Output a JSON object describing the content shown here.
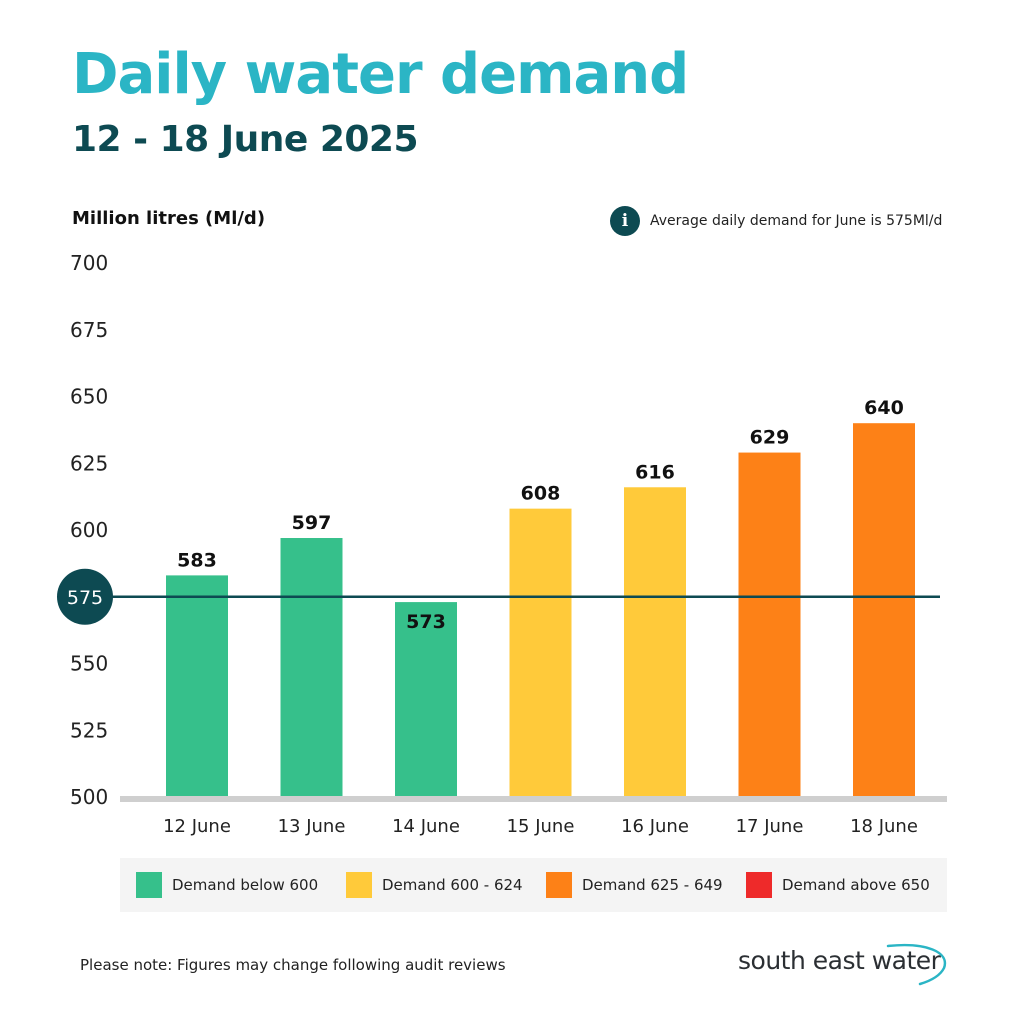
{
  "header": {
    "title": "Daily water demand",
    "subtitle": "12 - 18 June 2025"
  },
  "avg_note": {
    "icon": "info-icon",
    "icon_glyph": "i",
    "text": "Average daily demand for June is 575Ml/d"
  },
  "chart_data": {
    "type": "bar",
    "title": "Daily water demand",
    "ylabel": "Million litres (Ml/d)",
    "xlabel": "",
    "categories": [
      "12 June",
      "13 June",
      "14 June",
      "15 June",
      "16 June",
      "17 June",
      "18 June"
    ],
    "values": [
      583,
      597,
      573,
      608,
      616,
      629,
      640
    ],
    "bar_colors": [
      "#36c08b",
      "#36c08b",
      "#36c08b",
      "#ffca3a",
      "#ffca3a",
      "#fd8117",
      "#fd8117"
    ],
    "ylim": [
      500,
      700
    ],
    "yticks": [
      500,
      525,
      550,
      575,
      600,
      625,
      650,
      675,
      700
    ],
    "reference_line": {
      "value": 575,
      "label": "575",
      "color": "#0d4a52"
    },
    "grid": false
  },
  "legend": [
    {
      "label": "Demand below 600",
      "color": "#36c08b"
    },
    {
      "label": "Demand 600 - 624",
      "color": "#ffca3a"
    },
    {
      "label": "Demand 625 - 649",
      "color": "#fd8117"
    },
    {
      "label": "Demand above 650",
      "color": "#ee2a2a"
    }
  ],
  "footer": {
    "note": "Please note: Figures may change following audit reviews",
    "brand": "south east water",
    "brand_color": "#2bb5c5"
  }
}
